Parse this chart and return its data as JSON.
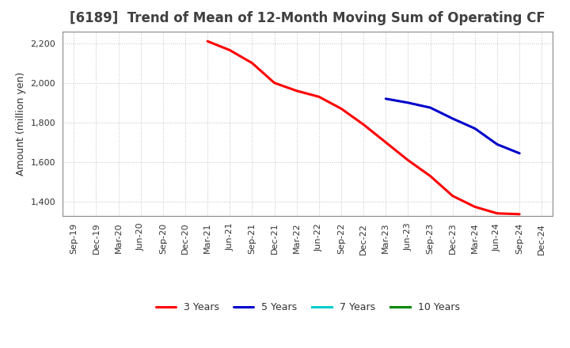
{
  "title": "[6189]  Trend of Mean of 12-Month Moving Sum of Operating CF",
  "ylabel": "Amount (million yen)",
  "ylim": [
    1330,
    2260
  ],
  "yticks": [
    1400,
    1600,
    1800,
    2000,
    2200
  ],
  "background_color": "#ffffff",
  "grid_color": "#bbbbbb",
  "title_color": "#404040",
  "line_3y": {
    "label": "3 Years",
    "color": "#ff0000",
    "x": [
      "Mar-21",
      "Jun-21",
      "Sep-21",
      "Dec-21",
      "Mar-22",
      "Jun-22",
      "Sep-22",
      "Dec-22",
      "Mar-23",
      "Jun-23",
      "Sep-23",
      "Dec-23",
      "Mar-24",
      "Jun-24",
      "Sep-24"
    ],
    "y": [
      2210,
      2165,
      2100,
      2000,
      1960,
      1930,
      1870,
      1790,
      1700,
      1610,
      1530,
      1430,
      1375,
      1342,
      1338
    ]
  },
  "line_5y": {
    "label": "5 Years",
    "color": "#0000cc",
    "x": [
      "Mar-23",
      "Jun-23",
      "Sep-23",
      "Dec-23",
      "Mar-24",
      "Jun-24",
      "Sep-24"
    ],
    "y": [
      1920,
      1900,
      1875,
      1820,
      1770,
      1690,
      1645
    ]
  },
  "line_7y": {
    "label": "7 Years",
    "color": "#00cccc",
    "x": [],
    "y": []
  },
  "line_10y": {
    "label": "10 Years",
    "color": "#008800",
    "x": [],
    "y": []
  },
  "xtick_labels": [
    "Sep-19",
    "Dec-19",
    "Mar-20",
    "Jun-20",
    "Sep-20",
    "Dec-20",
    "Mar-21",
    "Jun-21",
    "Sep-21",
    "Dec-21",
    "Mar-22",
    "Jun-22",
    "Sep-22",
    "Dec-22",
    "Mar-23",
    "Jun-23",
    "Sep-23",
    "Dec-23",
    "Mar-24",
    "Jun-24",
    "Sep-24",
    "Dec-24"
  ],
  "title_fontsize": 12,
  "axis_fontsize": 9,
  "tick_fontsize": 8,
  "legend_fontsize": 9,
  "linewidth": 2.2
}
